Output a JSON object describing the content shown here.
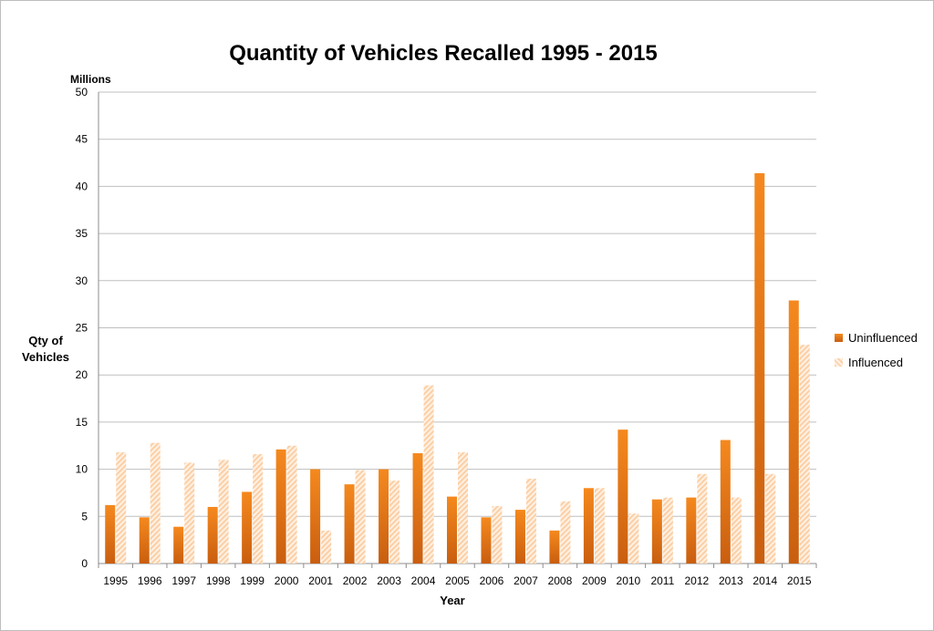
{
  "chart_data": {
    "type": "bar",
    "title": "Quantity of Vehicles Recalled 1995 - 2015",
    "unit_label": "Millions",
    "ylabel": "Qty of Vehicles",
    "xlabel": "Year",
    "ylim": [
      0,
      50
    ],
    "yticks": [
      "0",
      "5",
      "10",
      "15",
      "20",
      "25",
      "30",
      "35",
      "40",
      "45",
      "50"
    ],
    "grid": true,
    "legend_position": "right",
    "categories": [
      "1995",
      "1996",
      "1997",
      "1998",
      "1999",
      "2000",
      "2001",
      "2002",
      "2003",
      "2004",
      "2005",
      "2006",
      "2007",
      "2008",
      "2009",
      "2010",
      "2011",
      "2012",
      "2013",
      "2014",
      "2015"
    ],
    "series": [
      {
        "name": "Uninfluenced",
        "color": "#e8761a",
        "values": [
          6.2,
          4.9,
          3.9,
          6.0,
          7.6,
          12.1,
          10.0,
          8.4,
          10.0,
          11.7,
          7.1,
          4.9,
          5.7,
          3.5,
          8.0,
          14.2,
          6.8,
          7.0,
          13.1,
          41.4,
          27.9
        ]
      },
      {
        "name": "Influenced",
        "color": "#fbd2ad",
        "values": [
          11.8,
          12.8,
          10.7,
          11.0,
          11.6,
          12.5,
          3.5,
          9.9,
          8.8,
          18.9,
          11.8,
          6.1,
          9.0,
          6.6,
          8.0,
          5.3,
          7.0,
          9.5,
          7.0,
          9.5,
          23.2
        ]
      }
    ]
  }
}
